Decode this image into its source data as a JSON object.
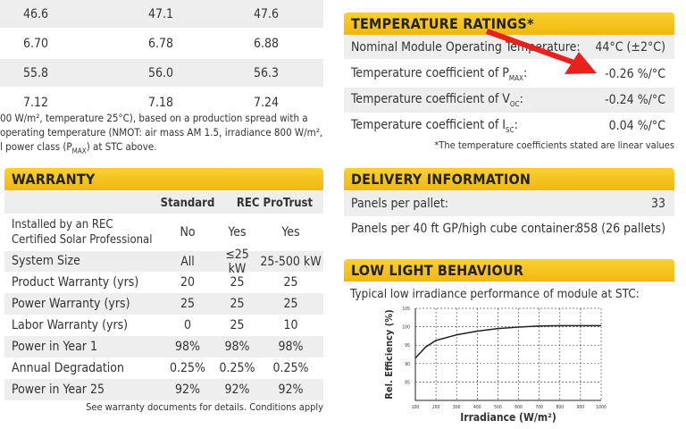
{
  "top_table": {
    "rows": [
      [
        "46.6",
        "47.1",
        "47.6"
      ],
      [
        "6.70",
        "6.78",
        "6.88"
      ],
      [
        "55.8",
        "56.0",
        "56.3"
      ],
      [
        "7.12",
        "7.18",
        "7.24"
      ]
    ],
    "footnote_lines": [
      "00 W/m², temperature 25°C), based on a production spread with a",
      "operating temperature (NMOT: air mass AM 1.5, irradiance 800 W/m²,",
      "l power class (P",
      "MAX",
      ") at STC above."
    ]
  },
  "temperature": {
    "title": "TEMPERATURE RATINGS*",
    "rows": [
      {
        "label": "Nominal Module Operating Temperature:",
        "sub": "",
        "value": "44°C (±2°C)"
      },
      {
        "label": "Temperature coefficient of P",
        "sub": "MAX",
        "value": "-0.26 %/°C"
      },
      {
        "label": "Temperature coefficient of V",
        "sub": "OC",
        "value": "-0.24 %/°C"
      },
      {
        "label": "Temperature coefficient of I",
        "sub": "SC",
        "value": "0.04 %/°C"
      }
    ],
    "note": "*The temperature coefficients stated are linear values",
    "arrow_color": "#e8211c"
  },
  "warranty": {
    "title": "WARRANTY",
    "col_standard": "Standard",
    "col_protrust": "REC ProTrust",
    "rows": [
      {
        "label": "Installed by an REC\nCertified Solar Professional",
        "v": [
          "No",
          "Yes",
          "Yes"
        ]
      },
      {
        "label": "System Size",
        "v": [
          "All",
          "≤25 kW",
          "25-500 kW"
        ]
      },
      {
        "label": "Product Warranty (yrs)",
        "v": [
          "20",
          "25",
          "25"
        ]
      },
      {
        "label": "Power Warranty (yrs)",
        "v": [
          "25",
          "25",
          "25"
        ]
      },
      {
        "label": "Labor Warranty (yrs)",
        "v": [
          "0",
          "25",
          "10"
        ]
      },
      {
        "label": "Power in Year 1",
        "v": [
          "98%",
          "98%",
          "98%"
        ]
      },
      {
        "label": "Annual Degradation",
        "v": [
          "0.25%",
          "0.25%",
          "0.25%"
        ]
      },
      {
        "label": "Power in Year 25",
        "v": [
          "92%",
          "92%",
          "92%"
        ]
      }
    ],
    "note": "See warranty documents for details. Conditions apply"
  },
  "delivery": {
    "title": "DELIVERY INFORMATION",
    "rows": [
      {
        "label": "Panels per pallet:",
        "value": "33"
      },
      {
        "label": "Panels per 40 ft GP/high cube container:",
        "value": "858 (26 pallets)"
      }
    ]
  },
  "low_light": {
    "title": "LOW LIGHT BEHAVIOUR",
    "caption": "Typical low irradiance performance of module at STC:"
  },
  "chart_data": {
    "type": "line",
    "xlabel": "Irradiance (W/m²)",
    "ylabel": "Rel. Efficiency (%)",
    "x_ticks": [
      100,
      200,
      300,
      400,
      500,
      600,
      700,
      800,
      900,
      1000
    ],
    "y_ticks": [
      85,
      90,
      95,
      100,
      105
    ],
    "xlim": [
      100,
      1000
    ],
    "ylim": [
      80,
      105
    ],
    "grid": true,
    "x": [
      100,
      150,
      200,
      300,
      400,
      500,
      600,
      700,
      800,
      900,
      1000
    ],
    "y": [
      91.5,
      94.5,
      96.3,
      97.8,
      98.8,
      99.5,
      99.9,
      100.2,
      100.3,
      100.3,
      100.3
    ]
  }
}
